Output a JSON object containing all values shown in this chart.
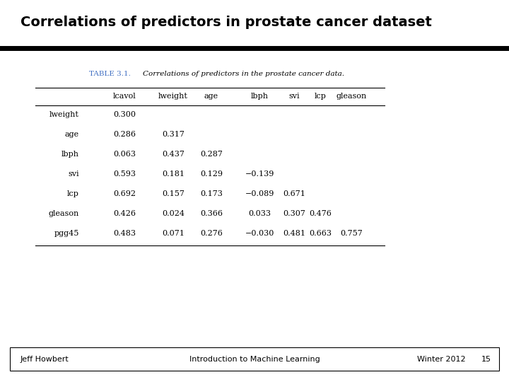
{
  "title": "Correlations of predictors in prostate cancer dataset",
  "table_label": "TABLE 3.1.",
  "table_caption": "Correlations of predictors in the prostate cancer data.",
  "col_headers": [
    "lcavol",
    "lweight",
    "age",
    "lbph",
    "svi",
    "lcp",
    "gleason"
  ],
  "row_headers": [
    "lweight",
    "age",
    "lbph",
    "svi",
    "lcp",
    "gleason",
    "pgg45"
  ],
  "table_data": [
    [
      "0.300",
      "",
      "",
      "",
      "",
      "",
      ""
    ],
    [
      "0.286",
      "0.317",
      "",
      "",
      "",
      "",
      ""
    ],
    [
      "0.063",
      "0.437",
      "0.287",
      "",
      "",
      "",
      ""
    ],
    [
      "0.593",
      "0.181",
      "0.129",
      "−0.139",
      "",
      "",
      ""
    ],
    [
      "0.692",
      "0.157",
      "0.173",
      "−0.089",
      "0.671",
      "",
      ""
    ],
    [
      "0.426",
      "0.024",
      "0.366",
      "0.033",
      "0.307",
      "0.476",
      ""
    ],
    [
      "0.483",
      "0.071",
      "0.276",
      "−0.030",
      "0.481",
      "0.663",
      "0.757"
    ]
  ],
  "footer_left": "Jeff Howbert",
  "footer_center": "Introduction to Machine Learning",
  "footer_right": "Winter 2012",
  "footer_page": "15",
  "title_color": "#000000",
  "table_label_color": "#4472c4",
  "background_color": "#ffffff"
}
